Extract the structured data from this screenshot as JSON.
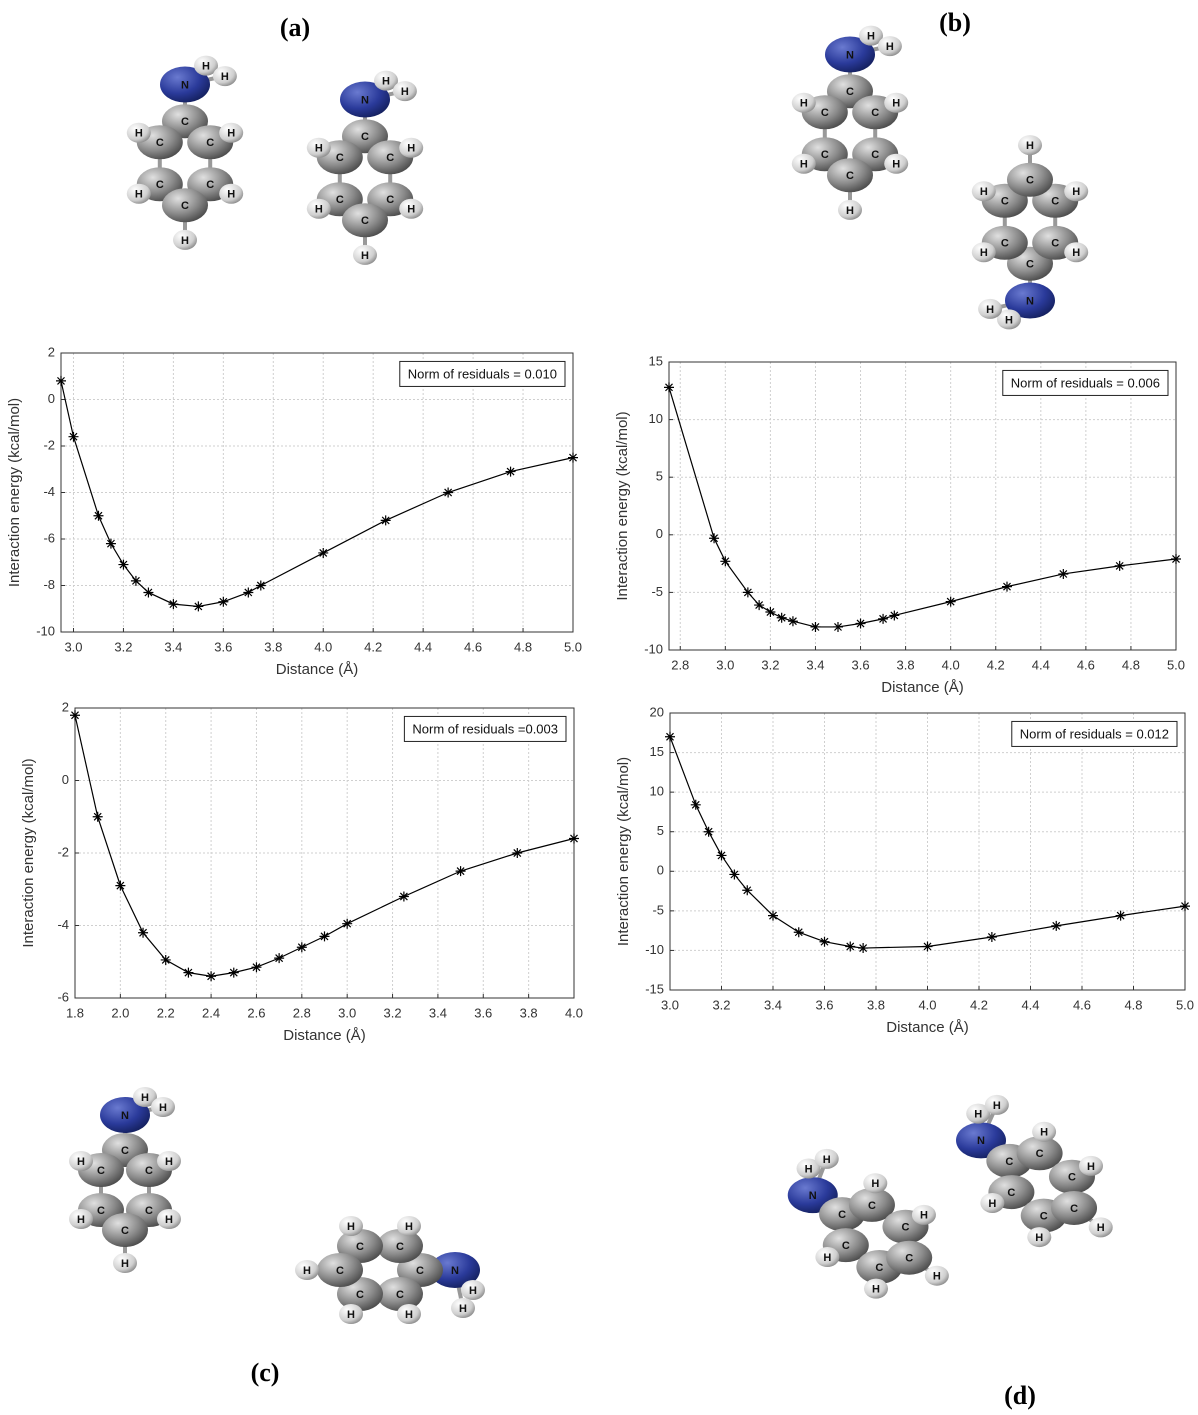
{
  "panel_labels": [
    "(a)",
    "(b)",
    "(c)",
    "(d)"
  ],
  "molecules": [
    {
      "atoms": [
        "N",
        "H",
        "H",
        "C",
        "C",
        "C",
        "C",
        "C",
        "C",
        "H",
        "H",
        "H",
        "H",
        "H"
      ]
    },
    {
      "atoms": [
        "N",
        "H",
        "H",
        "C",
        "C",
        "C",
        "C",
        "C",
        "C",
        "H",
        "H",
        "H",
        "H",
        "H"
      ]
    },
    {
      "atoms": [
        "N",
        "H",
        "H",
        "C",
        "C",
        "C",
        "C",
        "C",
        "C",
        "H",
        "H",
        "H",
        "H",
        "H"
      ]
    },
    {
      "atoms": [
        "N",
        "H",
        "H",
        "C",
        "C",
        "C",
        "C",
        "C",
        "C",
        "H",
        "H",
        "H",
        "H",
        "H"
      ]
    },
    {
      "atoms": [
        "N",
        "H",
        "H",
        "C",
        "C",
        "C",
        "C",
        "C",
        "C",
        "H",
        "H",
        "H",
        "H",
        "H"
      ]
    },
    {
      "atoms": [
        "N",
        "H",
        "H",
        "C",
        "C",
        "C",
        "C",
        "C",
        "C",
        "H",
        "H",
        "H",
        "H",
        "H"
      ]
    },
    {
      "atoms": [
        "N",
        "H",
        "H",
        "C",
        "C",
        "C",
        "C",
        "C",
        "C",
        "H",
        "H",
        "H",
        "H",
        "H"
      ]
    },
    {
      "atoms": [
        "N",
        "H",
        "H",
        "C",
        "C",
        "C",
        "C",
        "C",
        "C",
        "H",
        "H",
        "H",
        "H",
        "H"
      ]
    }
  ],
  "chart_data": [
    {
      "type": "line",
      "x_label": "Distance (Å)",
      "y_label": "Interaction energy  (kcal/mol)",
      "annotation": "Norm of residuals = 0.010",
      "color": "#000000",
      "grid": true,
      "x": [
        2.95,
        3.0,
        3.1,
        3.15,
        3.2,
        3.25,
        3.3,
        3.4,
        3.5,
        3.6,
        3.7,
        3.75,
        4.0,
        4.25,
        4.5,
        4.75,
        5.0
      ],
      "values": [
        0.8,
        -1.6,
        -5.0,
        -6.2,
        -7.1,
        -7.8,
        -8.3,
        -8.8,
        -8.9,
        -8.7,
        -8.3,
        -8.0,
        -6.6,
        -5.2,
        -4.0,
        -3.1,
        -2.5
      ],
      "xlim": [
        2.95,
        5.0
      ],
      "ylim": [
        -10,
        2
      ],
      "xticks": [
        {
          "value": 3,
          "label": "3.0"
        },
        3.2,
        3.4,
        3.6,
        3.8,
        {
          "value": 4,
          "label": "4.0"
        },
        4.2,
        4.4,
        4.6,
        4.8,
        {
          "value": 5,
          "label": "5.0"
        }
      ],
      "yticks": [
        -10,
        -8,
        -6,
        -4,
        -2,
        0,
        2
      ]
    },
    {
      "type": "line",
      "x_label": "Distance (Å)",
      "y_label": "Interaction energy  (kcal/mol)",
      "annotation": "Norm of residuals = 0.006",
      "color": "#000000",
      "grid": true,
      "x": [
        2.75,
        2.95,
        3.0,
        3.1,
        3.15,
        3.2,
        3.25,
        3.3,
        3.4,
        3.5,
        3.6,
        3.7,
        3.75,
        4.0,
        4.25,
        4.5,
        4.75,
        5.0
      ],
      "values": [
        12.8,
        -0.3,
        -2.3,
        -5.0,
        -6.1,
        -6.7,
        -7.2,
        -7.5,
        -8.0,
        -8.0,
        -7.7,
        -7.3,
        -7.0,
        -5.8,
        -4.5,
        -3.4,
        -2.7,
        -2.1
      ],
      "xlim": [
        2.75,
        5.0
      ],
      "ylim": [
        -10,
        15
      ],
      "xticks": [
        2.8,
        {
          "value": 3,
          "label": "3.0"
        },
        3.2,
        3.4,
        3.6,
        3.8,
        {
          "value": 4,
          "label": "4.0"
        },
        4.2,
        4.4,
        4.6,
        4.8,
        {
          "value": 5,
          "label": "5.0"
        }
      ],
      "yticks": [
        -10,
        -5,
        0,
        5,
        10,
        15
      ]
    },
    {
      "type": "line",
      "x_label": "Distance (Å)",
      "y_label": "Interaction energy  (kcal/mol)",
      "annotation": "Norm of residuals =0.003",
      "color": "#000000",
      "grid": true,
      "x": [
        1.8,
        1.9,
        2.0,
        2.1,
        2.2,
        2.3,
        2.4,
        2.5,
        2.6,
        2.7,
        2.8,
        2.9,
        3.0,
        3.25,
        3.5,
        3.75,
        4.0
      ],
      "values": [
        1.8,
        -1.0,
        -2.9,
        -4.2,
        -4.95,
        -5.3,
        -5.4,
        -5.3,
        -5.15,
        -4.9,
        -4.6,
        -4.3,
        -3.95,
        -3.2,
        -2.5,
        -2.0,
        -1.6
      ],
      "xlim": [
        1.8,
        4.0
      ],
      "ylim": [
        -6,
        2
      ],
      "xticks": [
        1.8,
        {
          "value": 2,
          "label": "2.0"
        },
        2.2,
        2.4,
        2.6,
        2.8,
        {
          "value": 3,
          "label": "3.0"
        },
        3.2,
        3.4,
        3.6,
        3.8,
        {
          "value": 4,
          "label": "4.0"
        }
      ],
      "yticks": [
        -6,
        -4,
        -2,
        0,
        2
      ]
    },
    {
      "type": "line",
      "x_label": "Distance (Å)",
      "y_label": "Interaction energy  (kcal/mol)",
      "annotation": "Norm of residuals = 0.012",
      "color": "#000000",
      "grid": true,
      "x": [
        3.0,
        3.1,
        3.15,
        3.2,
        3.25,
        3.3,
        3.4,
        3.5,
        3.6,
        3.7,
        3.75,
        4.0,
        4.25,
        4.5,
        4.75,
        5.0
      ],
      "values": [
        17.0,
        8.4,
        5.0,
        2.0,
        -0.4,
        -2.4,
        -5.6,
        -7.7,
        -8.9,
        -9.5,
        -9.7,
        -9.5,
        -8.3,
        -6.9,
        -5.6,
        -4.4
      ],
      "xlim": [
        3.0,
        5.0
      ],
      "ylim": [
        -15,
        20
      ],
      "xticks": [
        {
          "value": 3,
          "label": "3.0"
        },
        3.2,
        3.4,
        3.6,
        3.8,
        {
          "value": 4,
          "label": "4.0"
        },
        4.2,
        4.4,
        4.6,
        4.8,
        {
          "value": 5,
          "label": "5.0"
        }
      ],
      "yticks": [
        -15,
        -10,
        -5,
        0,
        5,
        10,
        15,
        20
      ]
    }
  ]
}
